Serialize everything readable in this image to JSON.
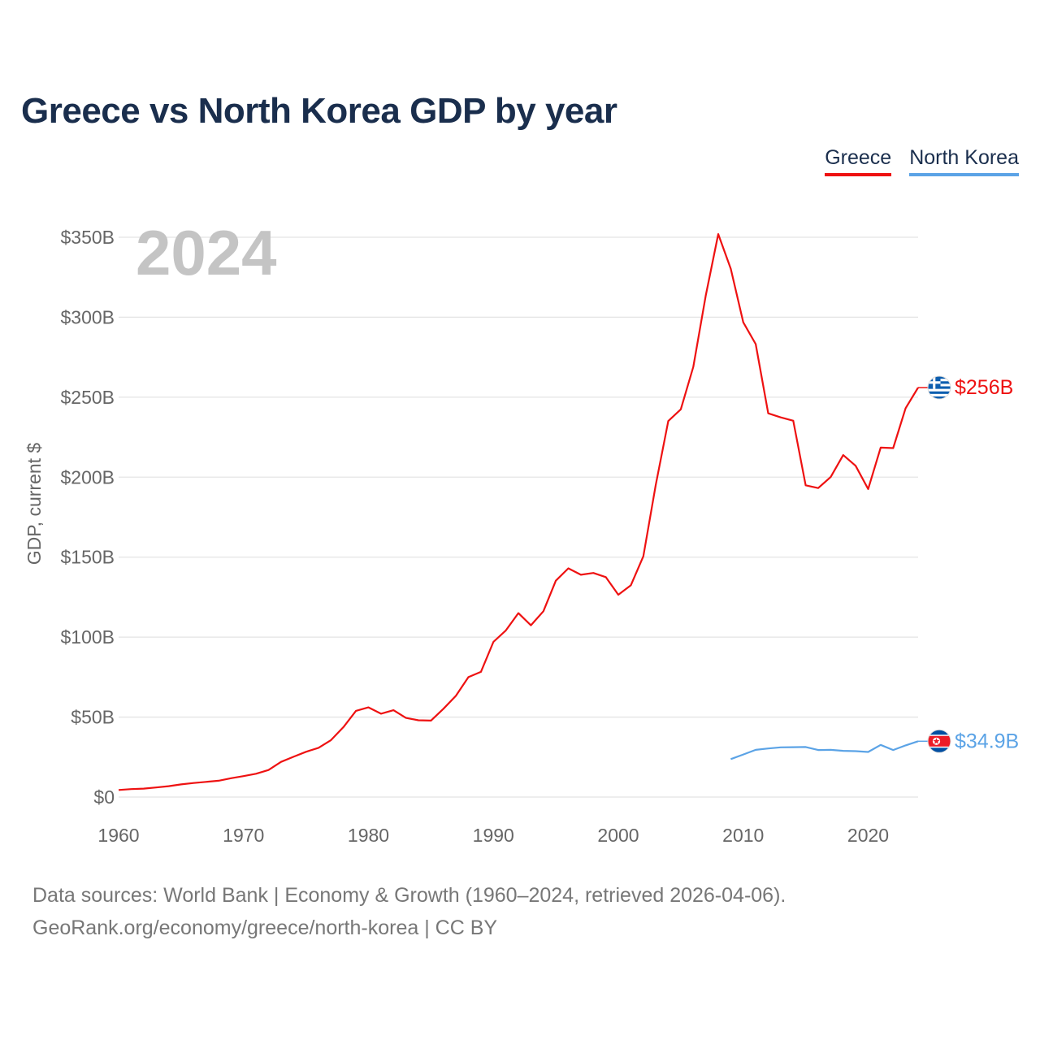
{
  "title": "Greece vs North Korea GDP by year",
  "legend": [
    {
      "label": "Greece",
      "color": "#ee1111"
    },
    {
      "label": "North Korea",
      "color": "#5ba3e6"
    }
  ],
  "footer": {
    "line1": "Data sources: World Bank | Economy & Growth (1960–2024, retrieved 2026-04-06).",
    "line2": "GeoRank.org/economy/greece/north-korea | CC BY"
  },
  "chart_data": {
    "type": "line",
    "title": "Greece vs North Korea GDP by year",
    "xlabel": "",
    "ylabel": "GDP, current $",
    "year_label": "2024",
    "xlim": [
      1960,
      2024
    ],
    "ylim": [
      0,
      350
    ],
    "x_ticks": [
      1960,
      1970,
      1980,
      1990,
      2000,
      2010,
      2020
    ],
    "y_ticks": [
      0,
      50,
      100,
      150,
      200,
      250,
      300,
      350
    ],
    "y_tick_labels": [
      "$0",
      "$50B",
      "$100B",
      "$150B",
      "$200B",
      "$250B",
      "$300B",
      "$350B"
    ],
    "grid": true,
    "legend_position": "top-right",
    "series": [
      {
        "name": "Greece",
        "color": "#ee1111",
        "end_label": "$256B",
        "flag": "greece-flag-icon",
        "x": [
          1960,
          1961,
          1962,
          1963,
          1964,
          1965,
          1966,
          1967,
          1968,
          1969,
          1970,
          1971,
          1972,
          1973,
          1974,
          1975,
          1976,
          1977,
          1978,
          1979,
          1980,
          1981,
          1982,
          1983,
          1984,
          1985,
          1986,
          1987,
          1988,
          1989,
          1990,
          1991,
          1992,
          1993,
          1994,
          1995,
          1996,
          1997,
          1998,
          1999,
          2000,
          2001,
          2002,
          2003,
          2004,
          2005,
          2006,
          2007,
          2008,
          2009,
          2010,
          2011,
          2012,
          2013,
          2014,
          2015,
          2016,
          2017,
          2018,
          2019,
          2020,
          2021,
          2022,
          2023,
          2024
        ],
        "values": [
          4.4,
          5.0,
          5.3,
          6.0,
          6.8,
          7.9,
          8.8,
          9.5,
          10.2,
          11.8,
          13.1,
          14.6,
          16.9,
          22.0,
          25.2,
          28.3,
          30.8,
          35.6,
          43.8,
          53.9,
          56.1,
          52.1,
          54.3,
          49.5,
          48.0,
          47.8,
          55.2,
          63.3,
          75.0,
          78.3,
          97.0,
          104.2,
          115.0,
          107.4,
          116.2,
          135.3,
          143.0,
          139.0,
          140.1,
          137.5,
          126.5,
          132.4,
          150.5,
          195.2,
          235.1,
          242.4,
          269.0,
          313.5,
          352.0,
          330.3,
          296.8,
          283.2,
          239.9,
          237.4,
          235.3,
          194.9,
          193.2,
          200.1,
          213.8,
          207.1,
          192.6,
          218.5,
          218.2,
          243.1,
          256.0
        ]
      },
      {
        "name": "North Korea",
        "color": "#5ba3e6",
        "end_label": "$34.9B",
        "flag": "north-korea-flag-icon",
        "x": [
          2009,
          2010,
          2011,
          2012,
          2013,
          2014,
          2015,
          2016,
          2017,
          2018,
          2019,
          2020,
          2021,
          2022,
          2023,
          2024
        ],
        "values": [
          23.7,
          26.6,
          29.5,
          30.4,
          31.1,
          31.2,
          31.3,
          29.4,
          29.5,
          28.9,
          28.7,
          28.2,
          32.6,
          29.4,
          32.3,
          34.9
        ]
      }
    ]
  }
}
